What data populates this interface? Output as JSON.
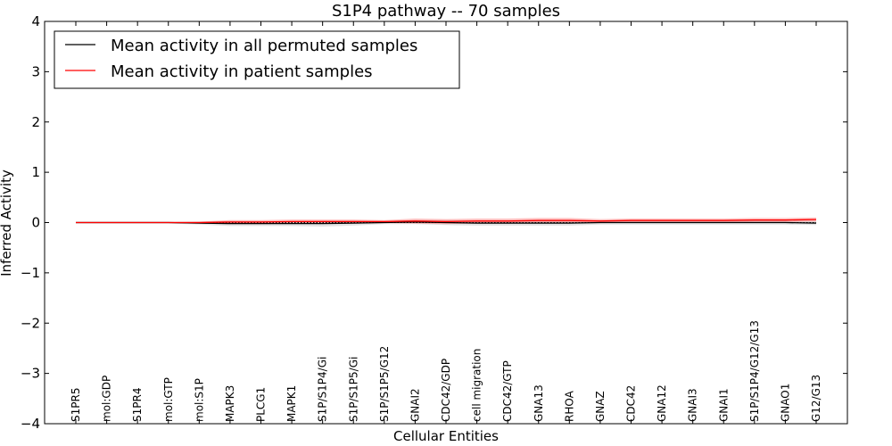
{
  "chart_data": {
    "type": "line",
    "title": "S1P4 pathway -- 70 samples",
    "xlabel": "Cellular Entities",
    "ylabel": "Inferred Activity",
    "ylim": [
      -4,
      4
    ],
    "yticks": [
      4,
      3,
      2,
      1,
      0,
      -1,
      -2,
      -3,
      -4
    ],
    "ytick_labels": [
      "4",
      "3",
      "2",
      "1",
      "0",
      "−1",
      "−2",
      "−3",
      "−4"
    ],
    "categories": [
      "S1PR5",
      "mol:GDP",
      "S1PR4",
      "mol:GTP",
      "mol:S1P",
      "MAPK3",
      "PLCG1",
      "MAPK1",
      "S1P/S1P4/Gi",
      "S1P/S1P5/Gi",
      "S1P/S1P5/G12",
      "GNAI2",
      "CDC42/GDP",
      "cell migration",
      "CDC42/GTP",
      "GNA13",
      "RHOA",
      "GNAZ",
      "CDC42",
      "GNA12",
      "GNAI3",
      "GNAI1",
      "S1P/S1P4/G12/G13",
      "GNAO1",
      "G12/G13"
    ],
    "legend": {
      "position": "top-left",
      "entries": [
        {
          "label": "Mean activity in all permuted samples",
          "color": "#000000"
        },
        {
          "label": "Mean activity in patient samples",
          "color": "#ff0000"
        }
      ]
    },
    "series": [
      {
        "name": "Mean activity in all permuted samples",
        "color": "#000000",
        "values": [
          0.0,
          0.0,
          0.0,
          0.0,
          -0.01,
          -0.02,
          -0.02,
          -0.02,
          -0.02,
          -0.01,
          0.0,
          0.01,
          0.0,
          -0.01,
          -0.01,
          -0.01,
          -0.01,
          0.0,
          0.0,
          0.0,
          0.0,
          0.0,
          0.0,
          0.0,
          -0.01
        ],
        "band": [
          0.02,
          0.02,
          0.02,
          0.02,
          0.03,
          0.05,
          0.05,
          0.05,
          0.06,
          0.05,
          0.03,
          0.04,
          0.05,
          0.05,
          0.05,
          0.05,
          0.05,
          0.04,
          0.04,
          0.04,
          0.04,
          0.04,
          0.04,
          0.04,
          0.04
        ]
      },
      {
        "name": "Mean activity in patient samples",
        "color": "#ff0000",
        "values": [
          0.0,
          0.0,
          0.0,
          0.0,
          0.0,
          0.01,
          0.01,
          0.02,
          0.02,
          0.02,
          0.02,
          0.03,
          0.02,
          0.03,
          0.03,
          0.04,
          0.04,
          0.03,
          0.04,
          0.04,
          0.04,
          0.04,
          0.05,
          0.05,
          0.06
        ],
        "band": [
          0.01,
          0.01,
          0.01,
          0.01,
          0.02,
          0.04,
          0.04,
          0.04,
          0.04,
          0.04,
          0.03,
          0.05,
          0.05,
          0.05,
          0.05,
          0.05,
          0.05,
          0.04,
          0.04,
          0.04,
          0.04,
          0.04,
          0.04,
          0.04,
          0.04
        ]
      }
    ],
    "reference_line": {
      "value": 0,
      "style": "dotted"
    }
  }
}
